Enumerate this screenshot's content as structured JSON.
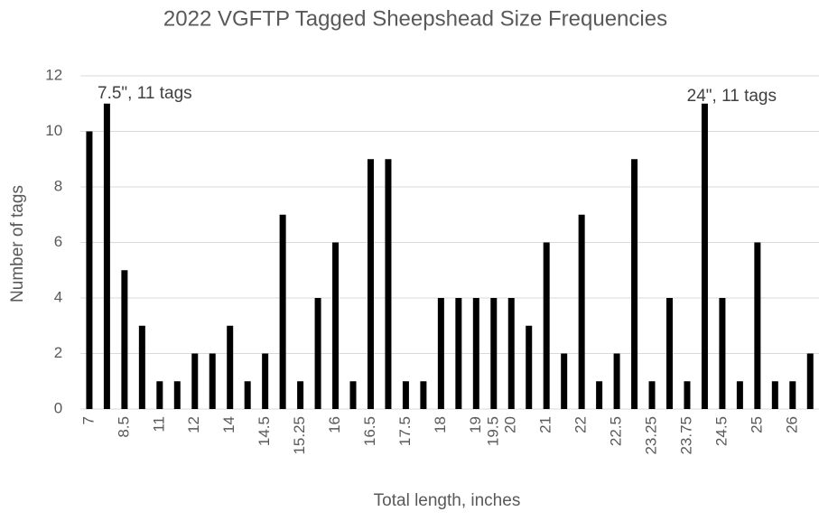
{
  "chart_data": {
    "type": "bar",
    "title": "2022 VGFTP Tagged Sheepshead Size Frequencies",
    "x_label": "Total length, inches",
    "y_label": "Number of tags",
    "categories": [
      "7",
      null,
      "8.5",
      null,
      "11",
      null,
      "12",
      null,
      "14",
      null,
      "14.5",
      null,
      "15.25",
      null,
      "16",
      null,
      "16.5",
      null,
      "17.5",
      null,
      "18",
      null,
      "19",
      "19.5",
      "20",
      null,
      "21",
      null,
      "22",
      null,
      "22.5",
      null,
      "23.25",
      null,
      "23.75",
      null,
      "24.5",
      null,
      "25",
      null,
      "26",
      null
    ],
    "values": [
      10,
      11,
      5,
      3,
      1,
      1,
      2,
      2,
      3,
      1,
      2,
      7,
      1,
      4,
      6,
      1,
      9,
      9,
      1,
      1,
      4,
      4,
      4,
      4,
      4,
      3,
      6,
      2,
      7,
      1,
      2,
      9,
      1,
      4,
      1,
      11,
      4,
      1,
      6,
      1,
      1,
      2
    ],
    "color": "#000000",
    "ylim": [
      0,
      12
    ],
    "yticks": [
      0,
      2,
      4,
      6,
      8,
      10,
      12
    ],
    "grid": true,
    "annotations": [
      "7.5\", 11 tags",
      "24\", 11 tags"
    ]
  }
}
